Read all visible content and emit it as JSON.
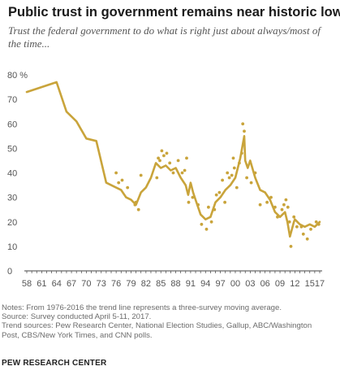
{
  "chart_data": {
    "type": "line",
    "title": "Public trust in government remains near historic lows",
    "subtitle": "Trust the federal government to do what is right just about always/most of the time...",
    "ylim": [
      0,
      80
    ],
    "yticks": [
      0,
      10,
      20,
      30,
      40,
      50,
      60,
      70,
      80
    ],
    "ytick_labels": [
      "0",
      "10",
      "20",
      "30",
      "40",
      "50",
      "60",
      "70",
      "80 %"
    ],
    "xlim": [
      1958,
      2017
    ],
    "xtick_labels": [
      "58",
      "61",
      "64",
      "67",
      "70",
      "73",
      "76",
      "79",
      "82",
      "85",
      "88",
      "91",
      "94",
      "97",
      "00",
      "03",
      "06",
      "09",
      "12",
      "15",
      "17"
    ],
    "xtick_years": [
      1958,
      1961,
      1964,
      1967,
      1970,
      1973,
      1976,
      1979,
      1982,
      1985,
      1988,
      1991,
      1994,
      1997,
      2000,
      2003,
      2006,
      2009,
      2012,
      2015,
      2017
    ],
    "grid": false,
    "legend": "none",
    "line_color": "#c9a43b",
    "series": [
      {
        "kind": "trend line",
        "points": [
          [
            1958,
            73
          ],
          [
            1964,
            77
          ],
          [
            1966,
            65
          ],
          [
            1968,
            61
          ],
          [
            1970,
            54
          ],
          [
            1972,
            53
          ],
          [
            1974,
            36
          ],
          [
            1976,
            34
          ],
          [
            1977,
            33
          ],
          [
            1978,
            30
          ],
          [
            1979,
            29
          ],
          [
            1980,
            27
          ],
          [
            1981,
            32
          ],
          [
            1982,
            34
          ],
          [
            1983,
            38
          ],
          [
            1984,
            44
          ],
          [
            1985,
            42
          ],
          [
            1986,
            43
          ],
          [
            1987,
            41
          ],
          [
            1988,
            42
          ],
          [
            1989,
            38
          ],
          [
            1990,
            35
          ],
          [
            1990.5,
            31
          ],
          [
            1991,
            36
          ],
          [
            1991.5,
            32
          ],
          [
            1992,
            29
          ],
          [
            1993,
            23
          ],
          [
            1994,
            21
          ],
          [
            1995,
            22
          ],
          [
            1996,
            28
          ],
          [
            1997,
            30
          ],
          [
            1998,
            33
          ],
          [
            1998.5,
            34
          ],
          [
            1999,
            35
          ],
          [
            2000,
            38
          ],
          [
            2001,
            46
          ],
          [
            2001.8,
            55
          ],
          [
            2002,
            45
          ],
          [
            2002.5,
            42
          ],
          [
            2003,
            45
          ],
          [
            2004,
            38
          ],
          [
            2005,
            33
          ],
          [
            2006,
            32
          ],
          [
            2007,
            29
          ],
          [
            2008,
            24
          ],
          [
            2009,
            22
          ],
          [
            2010,
            24
          ],
          [
            2010.5,
            20
          ],
          [
            2011,
            14
          ],
          [
            2011.8,
            20
          ],
          [
            2012,
            21
          ],
          [
            2013,
            19
          ],
          [
            2014,
            18
          ],
          [
            2015,
            19
          ],
          [
            2016,
            18
          ],
          [
            2016.5,
            19
          ],
          [
            2017,
            20
          ]
        ]
      },
      {
        "kind": "individual polls",
        "points": [
          [
            1976,
            40
          ],
          [
            1976.5,
            36
          ],
          [
            1977.2,
            37
          ],
          [
            1978.3,
            34
          ],
          [
            1979.8,
            27
          ],
          [
            1980,
            28
          ],
          [
            1980.5,
            25
          ],
          [
            1981,
            39
          ],
          [
            1984.2,
            38
          ],
          [
            1984.5,
            46
          ],
          [
            1984.8,
            45
          ],
          [
            1985.2,
            49
          ],
          [
            1985.6,
            47
          ],
          [
            1986.2,
            48
          ],
          [
            1986.8,
            44
          ],
          [
            1987.5,
            40
          ],
          [
            1988.5,
            45
          ],
          [
            1989.3,
            40
          ],
          [
            1989.8,
            41
          ],
          [
            1990.2,
            46
          ],
          [
            1990.6,
            28
          ],
          [
            1991.4,
            30
          ],
          [
            1992.5,
            27
          ],
          [
            1993.2,
            19
          ],
          [
            1994.2,
            17
          ],
          [
            1994.6,
            26
          ],
          [
            1995.2,
            20
          ],
          [
            1995.8,
            25
          ],
          [
            1996.2,
            31
          ],
          [
            1996.8,
            32
          ],
          [
            1997.4,
            37
          ],
          [
            1997.9,
            28
          ],
          [
            1998.4,
            40
          ],
          [
            1998.8,
            38
          ],
          [
            1999.3,
            39
          ],
          [
            1999.6,
            46
          ],
          [
            1999.8,
            42
          ],
          [
            2000.3,
            34
          ],
          [
            2000.8,
            44
          ],
          [
            2001.3,
            48
          ],
          [
            2001.5,
            60
          ],
          [
            2001.8,
            57
          ],
          [
            2002.3,
            38
          ],
          [
            2003.2,
            36
          ],
          [
            2004,
            40
          ],
          [
            2005,
            27
          ],
          [
            2006.4,
            28
          ],
          [
            2007.2,
            30
          ],
          [
            2008,
            26
          ],
          [
            2008.5,
            22
          ],
          [
            2009.4,
            25
          ],
          [
            2009.8,
            27
          ],
          [
            2010.2,
            29
          ],
          [
            2010.6,
            26
          ],
          [
            2010.9,
            20
          ],
          [
            2011.2,
            10
          ],
          [
            2011.8,
            22
          ],
          [
            2012.4,
            18
          ],
          [
            2013.3,
            18
          ],
          [
            2013.7,
            15
          ],
          [
            2014.5,
            13
          ],
          [
            2015.2,
            17
          ],
          [
            2016.3,
            20
          ],
          [
            2016.8,
            19
          ]
        ]
      }
    ]
  },
  "notes": [
    "Notes: From 1976-2016 the trend line represents a three-survey moving average.",
    "Source: Survey conducted April 5-11, 2017.",
    "Trend sources: Pew Research Center, National Election Studies, Gallup, ABC/Washington",
    "Post, CBS/New York Times, and CNN polls."
  ],
  "source": "PEW RESEARCH CENTER"
}
